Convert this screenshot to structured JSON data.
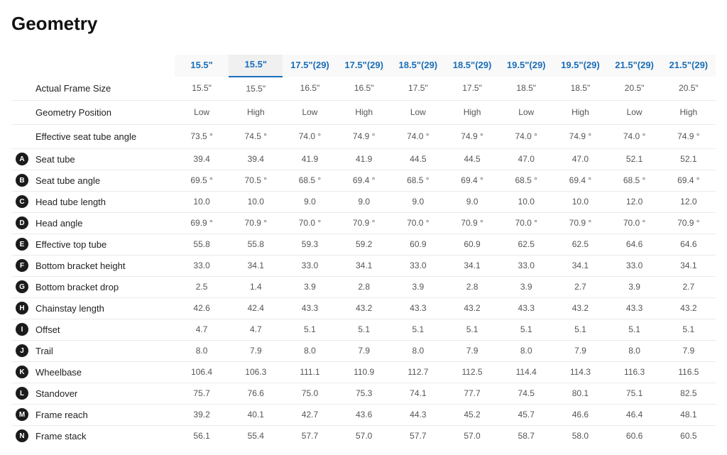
{
  "title": "Geometry",
  "header_sizes": [
    {
      "size": "15.5\"",
      "wheel": null,
      "active": false
    },
    {
      "size": "15.5\"",
      "wheel": null,
      "active": true
    },
    {
      "size": "17.5\"",
      "wheel": "(29)",
      "active": false
    },
    {
      "size": "17.5\"",
      "wheel": "(29)",
      "active": false
    },
    {
      "size": "18.5\"",
      "wheel": "(29)",
      "active": false
    },
    {
      "size": "18.5\"",
      "wheel": "(29)",
      "active": false
    },
    {
      "size": "19.5\"",
      "wheel": "(29)",
      "active": false
    },
    {
      "size": "19.5\"",
      "wheel": "(29)",
      "active": false
    },
    {
      "size": "21.5\"",
      "wheel": "(29)",
      "active": false
    },
    {
      "size": "21.5\"",
      "wheel": "(29)",
      "active": false
    }
  ],
  "rows": [
    {
      "legend": "",
      "label": "Actual Frame Size",
      "section_gap": true,
      "values": [
        "15.5\"",
        "15.5\"",
        "16.5\"",
        "16.5\"",
        "17.5\"",
        "17.5\"",
        "18.5\"",
        "18.5\"",
        "20.5\"",
        "20.5\""
      ]
    },
    {
      "legend": "",
      "label": "Geometry Position",
      "section_gap": true,
      "values": [
        "Low",
        "High",
        "Low",
        "High",
        "Low",
        "High",
        "Low",
        "High",
        "Low",
        "High"
      ]
    },
    {
      "legend": "",
      "label": "Effective seat tube angle",
      "section_gap": true,
      "values": [
        "73.5 °",
        "74.5 °",
        "74.0 °",
        "74.9 °",
        "74.0 °",
        "74.9 °",
        "74.0 °",
        "74.9 °",
        "74.0 °",
        "74.9 °"
      ]
    },
    {
      "legend": "A",
      "label": "Seat tube",
      "values": [
        "39.4",
        "39.4",
        "41.9",
        "41.9",
        "44.5",
        "44.5",
        "47.0",
        "47.0",
        "52.1",
        "52.1"
      ]
    },
    {
      "legend": "B",
      "label": "Seat tube angle",
      "values": [
        "69.5 °",
        "70.5 °",
        "68.5 °",
        "69.4 °",
        "68.5 °",
        "69.4 °",
        "68.5 °",
        "69.4 °",
        "68.5 °",
        "69.4 °"
      ]
    },
    {
      "legend": "C",
      "label": "Head tube length",
      "values": [
        "10.0",
        "10.0",
        "9.0",
        "9.0",
        "9.0",
        "9.0",
        "10.0",
        "10.0",
        "12.0",
        "12.0"
      ]
    },
    {
      "legend": "D",
      "label": "Head angle",
      "values": [
        "69.9 °",
        "70.9 °",
        "70.0 °",
        "70.9 °",
        "70.0 °",
        "70.9 °",
        "70.0 °",
        "70.9 °",
        "70.0 °",
        "70.9 °"
      ]
    },
    {
      "legend": "E",
      "label": "Effective top tube",
      "values": [
        "55.8",
        "55.8",
        "59.3",
        "59.2",
        "60.9",
        "60.9",
        "62.5",
        "62.5",
        "64.6",
        "64.6"
      ]
    },
    {
      "legend": "F",
      "label": "Bottom bracket height",
      "values": [
        "33.0",
        "34.1",
        "33.0",
        "34.1",
        "33.0",
        "34.1",
        "33.0",
        "34.1",
        "33.0",
        "34.1"
      ]
    },
    {
      "legend": "G",
      "label": "Bottom bracket drop",
      "values": [
        "2.5",
        "1.4",
        "3.9",
        "2.8",
        "3.9",
        "2.8",
        "3.9",
        "2.7",
        "3.9",
        "2.7"
      ]
    },
    {
      "legend": "H",
      "label": "Chainstay length",
      "values": [
        "42.6",
        "42.4",
        "43.3",
        "43.2",
        "43.3",
        "43.2",
        "43.3",
        "43.2",
        "43.3",
        "43.2"
      ]
    },
    {
      "legend": "I",
      "label": "Offset",
      "values": [
        "4.7",
        "4.7",
        "5.1",
        "5.1",
        "5.1",
        "5.1",
        "5.1",
        "5.1",
        "5.1",
        "5.1"
      ]
    },
    {
      "legend": "J",
      "label": "Trail",
      "values": [
        "8.0",
        "7.9",
        "8.0",
        "7.9",
        "8.0",
        "7.9",
        "8.0",
        "7.9",
        "8.0",
        "7.9"
      ]
    },
    {
      "legend": "K",
      "label": "Wheelbase",
      "values": [
        "106.4",
        "106.3",
        "111.1",
        "110.9",
        "112.7",
        "112.5",
        "114.4",
        "114.3",
        "116.3",
        "116.5"
      ]
    },
    {
      "legend": "L",
      "label": "Standover",
      "values": [
        "75.7",
        "76.6",
        "75.0",
        "75.3",
        "74.1",
        "77.7",
        "74.5",
        "80.1",
        "75.1",
        "82.5"
      ]
    },
    {
      "legend": "M",
      "label": "Frame reach",
      "values": [
        "39.2",
        "40.1",
        "42.7",
        "43.6",
        "44.3",
        "45.2",
        "45.7",
        "46.6",
        "46.4",
        "48.1"
      ]
    },
    {
      "legend": "N",
      "label": "Frame stack",
      "values": [
        "56.1",
        "55.4",
        "57.7",
        "57.0",
        "57.7",
        "57.0",
        "58.7",
        "58.0",
        "60.6",
        "60.5"
      ]
    }
  ],
  "colors": {
    "header_link": "#1a6eb8",
    "row_border": "#eceaea",
    "value_text": "#555555",
    "label_text": "#222222",
    "badge_bg": "#1b1b1b",
    "badge_fg": "#ffffff"
  }
}
